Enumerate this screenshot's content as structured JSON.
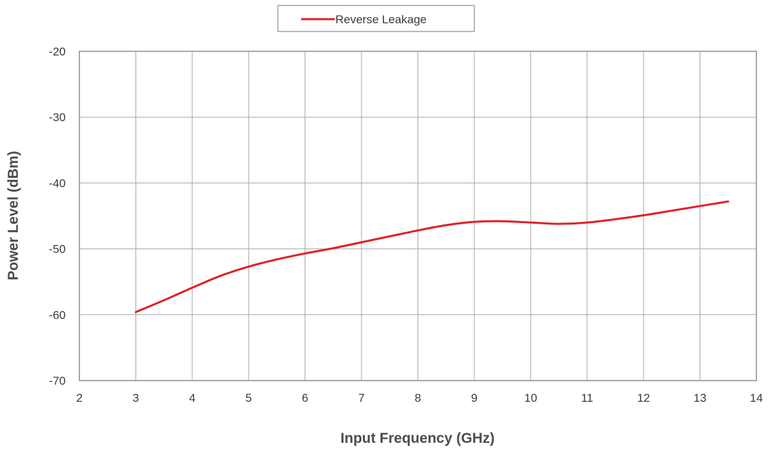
{
  "chart_data": {
    "type": "line",
    "title": "",
    "xlabel": "Input Frequency (GHz)",
    "ylabel": "Power Level (dBm)",
    "xlim": [
      2,
      14
    ],
    "ylim": [
      -70,
      -20
    ],
    "xticks": [
      2,
      3,
      4,
      5,
      6,
      7,
      8,
      9,
      10,
      11,
      12,
      13,
      14
    ],
    "yticks": [
      -70,
      -60,
      -50,
      -40,
      -30,
      -20
    ],
    "grid": true,
    "legend": "top-center",
    "series": [
      {
        "name": "Reverse Leakage",
        "color": "#e02027",
        "x": [
          3,
          3.5,
          4,
          4.5,
          5,
          5.5,
          6,
          6.5,
          7,
          7.5,
          8,
          8.5,
          9,
          9.5,
          10,
          10.5,
          11,
          11.5,
          12,
          12.5,
          13,
          13.5
        ],
        "y": [
          -59.6,
          -57.8,
          -55.9,
          -54.1,
          -52.7,
          -51.6,
          -50.7,
          -49.9,
          -49.0,
          -48.1,
          -47.2,
          -46.4,
          -45.9,
          -45.8,
          -46.0,
          -46.2,
          -46.0,
          -45.5,
          -44.9,
          -44.2,
          -43.5,
          -42.8
        ]
      }
    ]
  }
}
